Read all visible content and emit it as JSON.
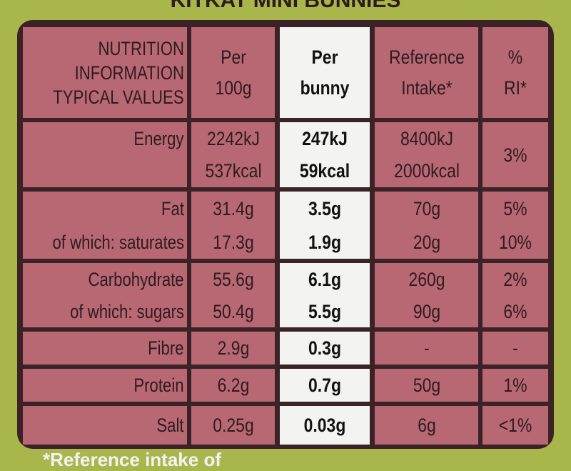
{
  "product": {
    "title": "KITKAT MINI BUNNIES"
  },
  "table": {
    "header": [
      [
        "NUTRITION",
        "INFORMATION",
        "TYPICAL VALUES"
      ],
      [
        "Per",
        "100g"
      ],
      [
        "Per",
        "bunny"
      ],
      [
        "Reference",
        "Intake*"
      ],
      [
        "%",
        "RI*"
      ]
    ],
    "rows": [
      [
        [
          "Energy"
        ],
        [
          "2242kJ",
          "537kcal"
        ],
        [
          "247kJ",
          "59kcal"
        ],
        [
          "8400kJ",
          "2000kcal"
        ],
        [
          "3%"
        ]
      ],
      [
        [
          "Fat",
          "of which: saturates"
        ],
        [
          "31.4g",
          "17.3g"
        ],
        [
          "3.5g",
          "1.9g"
        ],
        [
          "70g",
          "20g"
        ],
        [
          "5%",
          "10%"
        ]
      ],
      [
        [
          "Carbohydrate",
          "of which: sugars"
        ],
        [
          "55.6g",
          "50.4g"
        ],
        [
          "6.1g",
          "5.5g"
        ],
        [
          "260g",
          "90g"
        ],
        [
          "2%",
          "6%"
        ]
      ],
      [
        [
          "Fibre"
        ],
        [
          "2.9g"
        ],
        [
          "0.3g"
        ],
        [
          "-"
        ],
        [
          "-"
        ]
      ],
      [
        [
          "Protein"
        ],
        [
          "6.2g"
        ],
        [
          "0.7g"
        ],
        [
          "50g"
        ],
        [
          "1%"
        ]
      ],
      [
        [
          "Salt"
        ],
        [
          "0.25g"
        ],
        [
          "0.03g"
        ],
        [
          "6g"
        ],
        [
          "<1%"
        ]
      ]
    ]
  },
  "footnote": "*Reference intake of"
}
